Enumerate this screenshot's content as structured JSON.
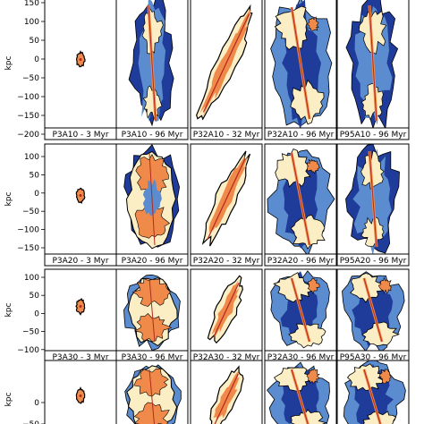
{
  "figure": {
    "ylabel": "kpc",
    "rows": [
      {
        "id": "A10",
        "ytick_labels": [
          "150",
          "100",
          "50",
          "0",
          "−50",
          "−100",
          "−150",
          "−200"
        ],
        "panels": [
          {
            "label": "P3A10 - 3 Myr",
            "shape": "tiny"
          },
          {
            "label": "P3A10 - 96 Myr",
            "shape": "jet-blue"
          },
          {
            "label": "P32A10 - 32 Myr",
            "shape": "tilted-orange"
          },
          {
            "label": "P32A10 - 96 Myr",
            "shape": "lobe-mixed"
          },
          {
            "label": "P95A10 - 96 Myr",
            "shape": "long-blue"
          }
        ]
      },
      {
        "id": "A20",
        "ytick_labels": [
          "100",
          "50",
          "0",
          "−50",
          "−100",
          "−150"
        ],
        "panels": [
          {
            "label": "P3A20 - 3 Myr",
            "shape": "tiny"
          },
          {
            "label": "P3A20 - 96 Myr",
            "shape": "cocoon"
          },
          {
            "label": "P32A20 - 32 Myr",
            "shape": "tilted-orange"
          },
          {
            "label": "P32A20 - 96 Myr",
            "shape": "lobe-mixed"
          },
          {
            "label": "P95A20 - 96 Myr",
            "shape": "long-blue"
          }
        ]
      },
      {
        "id": "A30",
        "ytick_labels": [
          "100",
          "50",
          "0",
          "−50",
          "−100"
        ],
        "panels": [
          {
            "label": "P3A30 - 3 Myr",
            "shape": "tiny"
          },
          {
            "label": "P3A30 - 96 Myr",
            "shape": "cocoon-orange"
          },
          {
            "label": "P32A30 - 32 Myr",
            "shape": "tilted-orange"
          },
          {
            "label": "P32A30 - 96 Myr",
            "shape": "lobe-mixed"
          },
          {
            "label": "P95A30 - 96 Myr",
            "shape": "lobe-mixed"
          }
        ]
      },
      {
        "id": "A40",
        "ytick_labels": [
          "0",
          "−50"
        ],
        "panels": [
          {
            "label": "",
            "shape": "tiny"
          },
          {
            "label": "",
            "shape": "cocoon-orange"
          },
          {
            "label": "",
            "shape": "tilted-orange"
          },
          {
            "label": "",
            "shape": "lobe-mixed"
          },
          {
            "label": "",
            "shape": "lobe-mixed"
          }
        ]
      }
    ],
    "colors": {
      "deep_blue": "#1f3c9a",
      "mid_blue": "#5a8ccf",
      "pale": "#fbeec4",
      "orange": "#f08a4b",
      "deep_red": "#b2291e",
      "outline": "#000000"
    }
  }
}
